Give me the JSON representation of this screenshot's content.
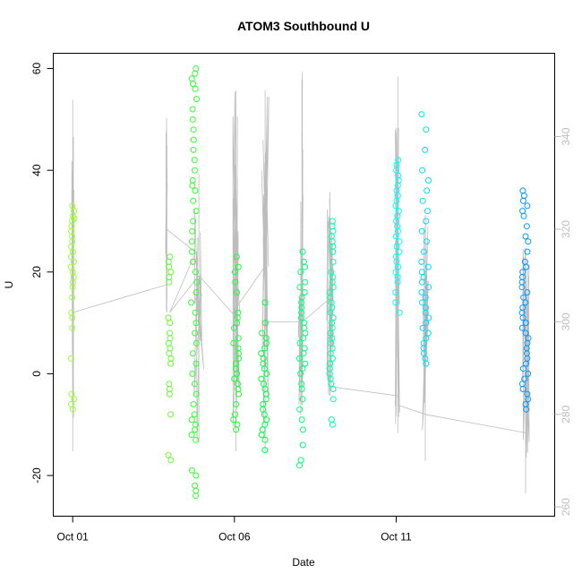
{
  "chart_data": {
    "type": "scatter",
    "title": "ATOM3 Southbound U",
    "xlabel": "Date",
    "ylabel": "U",
    "x_ticks": [
      {
        "day": 1,
        "label": "Oct 01"
      },
      {
        "day": 6,
        "label": "Oct 06"
      },
      {
        "day": 11,
        "label": "Oct 11"
      }
    ],
    "xlim_days": [
      0.4,
      15.9
    ],
    "ylim": [
      -28,
      63
    ],
    "y_ticks": [
      -20,
      0,
      20,
      40,
      60
    ],
    "right_axis": {
      "ylim": [
        258,
        358
      ],
      "ticks": [
        260,
        280,
        300,
        320,
        340
      ],
      "color": "#bdbdbd"
    },
    "clusters": [
      {
        "day": 1.0,
        "spread": 0.05,
        "u_values": [
          -7,
          -6,
          -5,
          -4,
          3,
          9,
          11,
          12,
          15,
          17,
          18,
          19,
          20,
          21,
          22,
          23,
          24,
          25,
          26,
          27,
          28,
          29,
          30,
          30.5,
          31,
          32,
          33
        ],
        "color": "#99ff33"
      },
      {
        "day": 4.0,
        "spread": 0.05,
        "u_values": [
          -17,
          -16,
          -8,
          -4,
          -3,
          -2,
          2,
          3,
          4,
          5,
          6,
          7,
          8,
          10,
          11,
          18,
          19,
          20,
          21,
          22,
          23
        ],
        "color": "#66ff33"
      },
      {
        "day": 4.75,
        "spread": 0.09,
        "u_values": [
          -24,
          -23,
          -22,
          -20,
          -19,
          -13,
          -12,
          -11,
          -10,
          -9,
          -8,
          -6,
          -4,
          -2,
          0,
          2,
          4,
          6,
          8,
          10,
          12,
          14,
          16,
          18,
          20,
          22,
          24,
          26,
          28,
          30,
          32,
          34,
          36,
          37,
          38,
          40,
          42,
          44,
          46,
          48,
          50,
          52,
          54,
          56,
          57,
          58,
          59,
          60
        ],
        "color": "#33ff33"
      },
      {
        "day": 6.05,
        "spread": 0.08,
        "u_values": [
          -11,
          -10,
          -9,
          -8,
          -6,
          -4,
          -3,
          -2,
          -1,
          0,
          1,
          2,
          3,
          4,
          5,
          6,
          7,
          9,
          10,
          11,
          12,
          16,
          18,
          20,
          21,
          23
        ],
        "color": "#1aff33"
      },
      {
        "day": 6.9,
        "spread": 0.1,
        "u_values": [
          -15,
          -13,
          -12,
          -11,
          -10,
          -9,
          -8,
          -7,
          -6,
          -5,
          -4,
          -3,
          -2,
          -1,
          0,
          1,
          2,
          3,
          4,
          5,
          6,
          7,
          8,
          10,
          14
        ],
        "color": "#00ff44"
      },
      {
        "day": 8.1,
        "spread": 0.1,
        "u_values": [
          -18,
          -17,
          -14,
          -11,
          -9,
          -7,
          -5,
          -3,
          -2,
          0,
          1,
          2,
          3,
          4,
          5,
          6,
          7,
          8,
          9,
          10,
          11,
          12,
          13,
          14,
          15,
          16,
          17,
          18,
          20,
          21,
          22,
          24
        ],
        "color": "#00ff77"
      },
      {
        "day": 9.0,
        "spread": 0.06,
        "u_values": [
          -10,
          -9,
          -5,
          -3,
          -2,
          -1,
          0,
          1,
          2,
          3,
          4,
          5,
          6,
          7,
          8,
          9,
          10,
          11,
          12,
          13,
          14,
          15,
          16,
          17,
          18,
          19,
          20,
          22,
          24,
          25,
          26,
          27,
          28,
          29,
          30
        ],
        "color": "#00ffaa"
      },
      {
        "day": 11.05,
        "spread": 0.07,
        "u_values": [
          12,
          14,
          16,
          18,
          19,
          20,
          21,
          22,
          23,
          24,
          25,
          26,
          27,
          28,
          29,
          30,
          31,
          32,
          33,
          34,
          35,
          36,
          37,
          38,
          39,
          40,
          41,
          42
        ],
        "color": "#00ffff"
      },
      {
        "day": 11.9,
        "spread": 0.12,
        "u_values": [
          2,
          3,
          4,
          5,
          6,
          7,
          8,
          9,
          10,
          11,
          12,
          13,
          14,
          15,
          16,
          17,
          18,
          19,
          20,
          21,
          22,
          24,
          26,
          28,
          30,
          32,
          34,
          36,
          38,
          40,
          44,
          48,
          51
        ],
        "color": "#00ddff"
      },
      {
        "day": 15.0,
        "spread": 0.11,
        "u_values": [
          -7,
          -6,
          -5,
          -4,
          -3,
          -2,
          -1,
          0,
          1,
          2,
          3,
          4,
          5,
          6,
          7,
          8,
          9,
          10,
          11,
          12,
          13,
          14,
          15,
          16,
          17,
          18,
          19,
          20,
          21,
          22,
          24,
          26,
          27,
          29,
          31,
          32,
          33,
          34,
          35,
          36
        ],
        "color": "#0099ff"
      }
    ],
    "background_series": {
      "name": "",
      "axis": "right",
      "color": "#bdbdbd",
      "segments": [
        {
          "day": 1.0,
          "max": 348,
          "min": 272,
          "spread": 0.04
        },
        {
          "day": 3.9,
          "max": 344,
          "min": 302,
          "spread": 0.03
        },
        {
          "day": 4.9,
          "max": 332,
          "min": 274,
          "spread": 0.15
        },
        {
          "day": 6.05,
          "max": 350,
          "min": 272,
          "spread": 0.12
        },
        {
          "day": 6.95,
          "max": 350,
          "min": 272,
          "spread": 0.12
        },
        {
          "day": 8.05,
          "max": 326,
          "min": 280,
          "spread": 0.08
        },
        {
          "day": 8.1,
          "max": 354,
          "min": 282,
          "spread": 0.02
        },
        {
          "day": 8.95,
          "max": 328,
          "min": 284,
          "spread": 0.1
        },
        {
          "day": 11.05,
          "max": 353,
          "min": 276,
          "spread": 0.08
        },
        {
          "day": 11.9,
          "max": 323,
          "min": 270,
          "spread": 0.1
        },
        {
          "day": 15.0,
          "max": 316,
          "min": 263,
          "spread": 0.12
        }
      ],
      "connections": [
        [
          1.0,
          302
        ],
        [
          3.9,
          308
        ],
        [
          3.9,
          320
        ],
        [
          4.8,
          315
        ],
        [
          4.0,
          302
        ],
        [
          4.9,
          310
        ],
        [
          6.05,
          301
        ],
        [
          6.05,
          303
        ],
        [
          6.95,
          312
        ],
        [
          6.95,
          300
        ],
        [
          8.1,
          300
        ],
        [
          8.95,
          305
        ],
        [
          8.95,
          286
        ],
        [
          11.05,
          284
        ],
        [
          11.05,
          282
        ],
        [
          11.9,
          280
        ],
        [
          15.0,
          276
        ]
      ]
    }
  }
}
